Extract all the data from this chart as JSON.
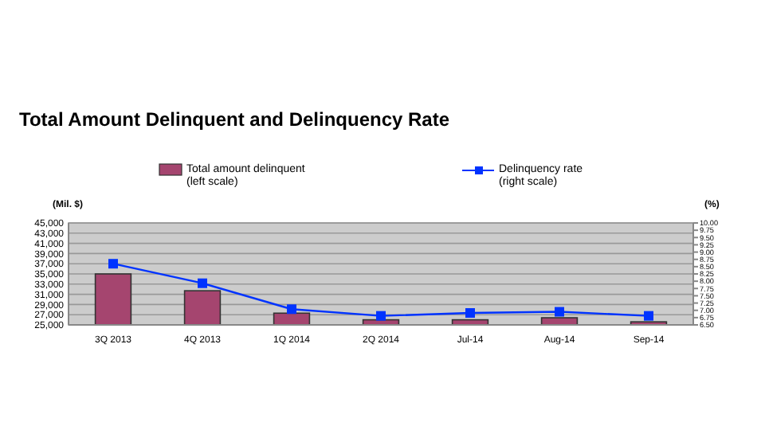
{
  "chart_data": {
    "type": "bar",
    "title": "Total Amount Delinquent and Delinquency Rate",
    "ylabel": "(Mil. $)",
    "y2label": "(%)",
    "categories": [
      "3Q 2013",
      "4Q 2013",
      "1Q 2014",
      "2Q 2014",
      "Jul-14",
      "Aug-14",
      "Sep-14"
    ],
    "series": [
      {
        "name": "Total amount delinquent\n(left scale)",
        "color": "#a5456f",
        "values": [
          35000,
          31700,
          27300,
          26000,
          26000,
          26400,
          25600
        ]
      },
      {
        "name": "Delinquency rate\n(right scale)",
        "type": "line",
        "axis": "y2",
        "color": "#0033ff",
        "marker": "square",
        "values": [
          8.6,
          7.93,
          7.04,
          6.81,
          6.91,
          6.95,
          6.81
        ]
      }
    ],
    "ylim": [
      25000,
      45000
    ],
    "yticks": [
      {
        "value": 25000,
        "label": "25,000"
      },
      {
        "value": 27000,
        "label": "27,000"
      },
      {
        "value": 29000,
        "label": "29,000"
      },
      {
        "value": 31000,
        "label": "31,000"
      },
      {
        "value": 33000,
        "label": "33,000"
      },
      {
        "value": 35000,
        "label": "35,000"
      },
      {
        "value": 37000,
        "label": "37,000"
      },
      {
        "value": 39000,
        "label": "39,000"
      },
      {
        "value": 41000,
        "label": "41,000"
      },
      {
        "value": 43000,
        "label": "43,000"
      },
      {
        "value": 45000,
        "label": "45,000"
      }
    ],
    "y2lim": [
      6.5,
      10
    ],
    "y2ticks": [
      {
        "value": 6.5,
        "label": "6.50"
      },
      {
        "value": 6.75,
        "label": "6.75"
      },
      {
        "value": 7,
        "label": "7.00"
      },
      {
        "value": 7.25,
        "label": "7.25"
      },
      {
        "value": 7.5,
        "label": "7.50"
      },
      {
        "value": 7.75,
        "label": "7.75"
      },
      {
        "value": 8,
        "label": "8.00"
      },
      {
        "value": 8.25,
        "label": "8.25"
      },
      {
        "value": 8.5,
        "label": "8.50"
      },
      {
        "value": 8.75,
        "label": "8.75"
      },
      {
        "value": 9,
        "label": "9.00"
      },
      {
        "value": 9.25,
        "label": "9.25"
      },
      {
        "value": 9.5,
        "label": "9.50"
      },
      {
        "value": 9.75,
        "label": "9.75"
      },
      {
        "value": 10,
        "label": "10.00"
      }
    ],
    "grid": "y",
    "legend": "top"
  }
}
